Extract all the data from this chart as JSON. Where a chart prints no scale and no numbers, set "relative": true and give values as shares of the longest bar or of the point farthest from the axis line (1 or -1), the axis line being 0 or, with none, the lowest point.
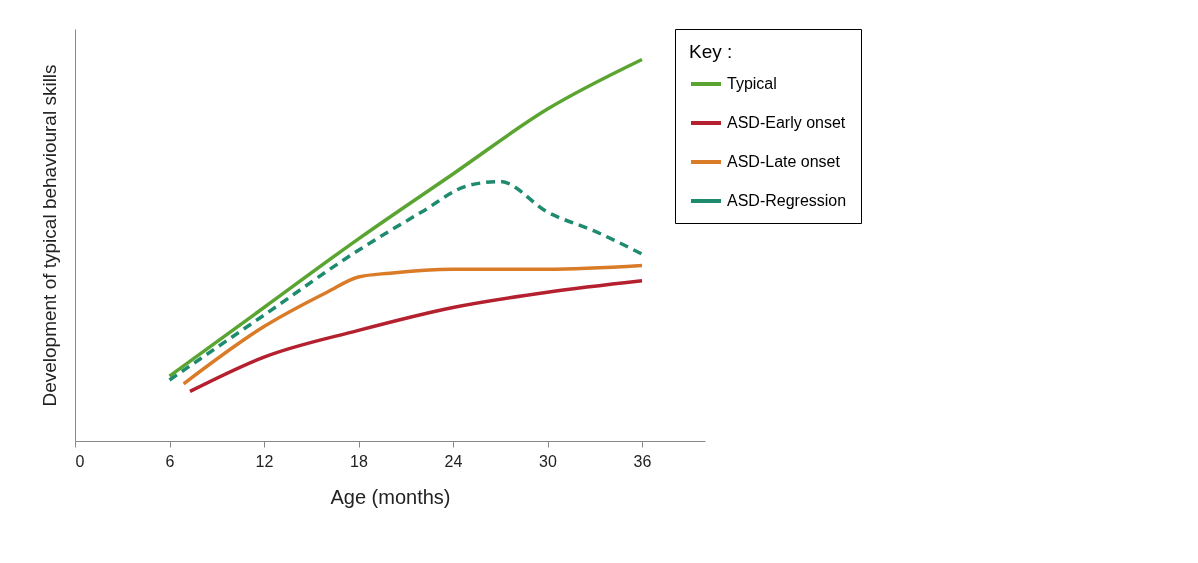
{
  "chart_data": {
    "type": "line",
    "relative": true,
    "xlabel": "Age (months)",
    "ylabel": "Development of typical behavioural  skills",
    "legend_title": "Key :",
    "legend": "top right",
    "marker": "none",
    "grid": false,
    "xlim": [
      0,
      40
    ],
    "xticks": [
      0,
      6,
      12,
      18,
      24,
      30,
      36
    ],
    "series": [
      {
        "name": "Typical",
        "color": "#5aa532",
        "line_style": "solid",
        "x": [
          6,
          12,
          18,
          24,
          30,
          36
        ],
        "values": [
          0.17,
          0.35,
          0.53,
          0.7,
          0.87,
          1
        ]
      },
      {
        "name": "ASD-Early onset",
        "color": "#b5202e",
        "line_style": "solid",
        "x": [
          7.3,
          12,
          18,
          24,
          30,
          36
        ],
        "values": [
          0.13,
          0.22,
          0.29,
          0.35,
          0.39,
          0.42
        ]
      },
      {
        "name": "ASD-Late onset",
        "color": "#d97b27",
        "line_style": "solid",
        "x": [
          6.9,
          12,
          16,
          18,
          20,
          24,
          30,
          36
        ],
        "values": [
          0.15,
          0.3,
          0.39,
          0.43,
          0.44,
          0.45,
          0.45,
          0.46
        ]
      },
      {
        "name": "ASD-Regression",
        "color": "#1e8a6e",
        "line_style": "dashed",
        "x": [
          6,
          12,
          18,
          22,
          25,
          27,
          30,
          33,
          36
        ],
        "values": [
          0.16,
          0.33,
          0.5,
          0.6,
          0.67,
          0.68,
          0.6,
          0.55,
          0.49
        ]
      }
    ]
  }
}
